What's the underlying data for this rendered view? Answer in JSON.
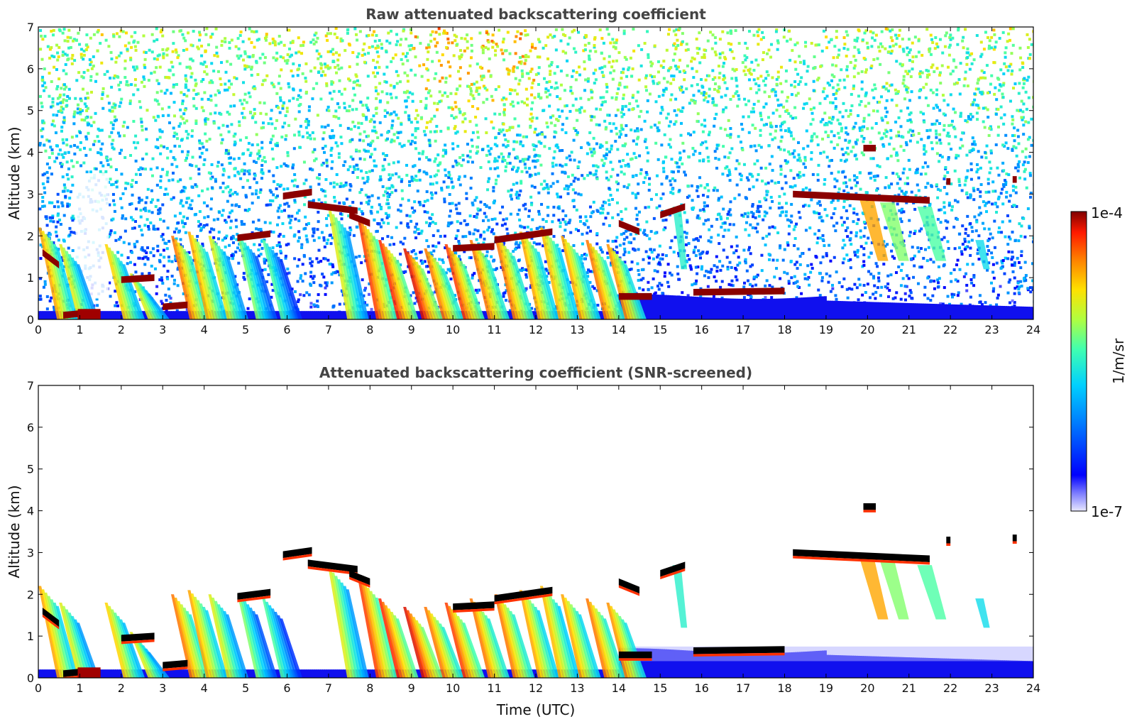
{
  "colorbar": {
    "label": "1/m/sr",
    "max_label": "1e-4",
    "min_label": "1e-7",
    "range": [
      1e-07,
      0.0001
    ],
    "scale": "log",
    "colormap": "jet"
  },
  "chart_data": [
    {
      "type": "heatmap",
      "title": "Raw attenuated backscattering coefficient",
      "xlabel": "",
      "ylabel": "Altitude (km)",
      "xlim": [
        0,
        24
      ],
      "ylim": [
        0,
        7
      ],
      "xticks": [
        "0",
        "1",
        "2",
        "3",
        "4",
        "5",
        "6",
        "7",
        "8",
        "9",
        "10",
        "11",
        "12",
        "13",
        "14",
        "15",
        "16",
        "17",
        "18",
        "19",
        "20",
        "21",
        "22",
        "23",
        "24"
      ],
      "yticks": [
        "0",
        "1",
        "2",
        "3",
        "4",
        "5",
        "6",
        "7"
      ],
      "screened": false
    },
    {
      "type": "heatmap",
      "title": "Attenuated backscattering coefficient (SNR-screened)",
      "xlabel": "Time (UTC)",
      "ylabel": "Altitude (km)",
      "xlim": [
        0,
        24
      ],
      "ylim": [
        0,
        7
      ],
      "xticks": [
        "0",
        "1",
        "2",
        "3",
        "4",
        "5",
        "6",
        "7",
        "8",
        "9",
        "10",
        "11",
        "12",
        "13",
        "14",
        "15",
        "16",
        "17",
        "18",
        "19",
        "20",
        "21",
        "22",
        "23",
        "24"
      ],
      "yticks": [
        "0",
        "1",
        "2",
        "3",
        "4",
        "5",
        "6",
        "7"
      ],
      "screened": true
    }
  ]
}
